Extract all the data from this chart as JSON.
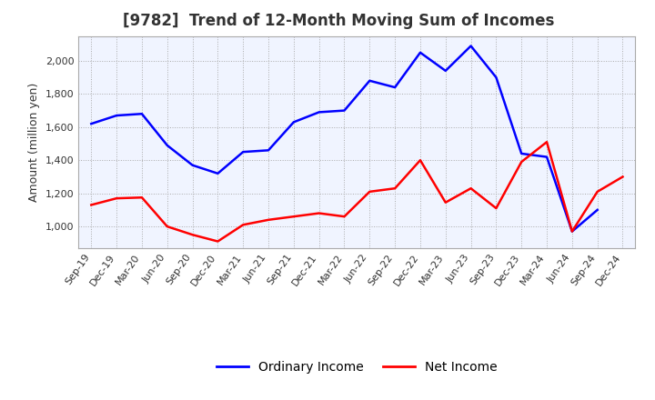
{
  "title": "[9782]  Trend of 12-Month Moving Sum of Incomes",
  "ylabel": "Amount (million yen)",
  "x_labels": [
    "Sep-19",
    "Dec-19",
    "Mar-20",
    "Jun-20",
    "Sep-20",
    "Dec-20",
    "Mar-21",
    "Jun-21",
    "Sep-21",
    "Dec-21",
    "Mar-22",
    "Jun-22",
    "Sep-22",
    "Dec-22",
    "Mar-23",
    "Jun-23",
    "Sep-23",
    "Dec-23",
    "Mar-24",
    "Jun-24",
    "Sep-24",
    "Dec-24"
  ],
  "ordinary_income": [
    1620,
    1670,
    1680,
    1490,
    1370,
    1320,
    1450,
    1460,
    1630,
    1690,
    1700,
    1880,
    1840,
    2050,
    1940,
    2090,
    1900,
    1440,
    1420,
    970,
    1100,
    null
  ],
  "net_income": [
    1130,
    1170,
    1175,
    1000,
    950,
    910,
    1010,
    1040,
    1060,
    1080,
    1060,
    1210,
    1230,
    1400,
    1145,
    1230,
    1110,
    1390,
    1510,
    970,
    1210,
    1300
  ],
  "ordinary_color": "#0000FF",
  "net_color": "#FF0000",
  "background_color": "#FFFFFF",
  "grid_color": "#AAAAAA",
  "ylim": [
    870,
    2150
  ],
  "yticks": [
    1000,
    1200,
    1400,
    1600,
    1800,
    2000
  ],
  "legend_labels": [
    "Ordinary Income",
    "Net Income"
  ],
  "title_fontsize": 12,
  "axis_fontsize": 9,
  "tick_fontsize": 8,
  "title_color": "#333333"
}
